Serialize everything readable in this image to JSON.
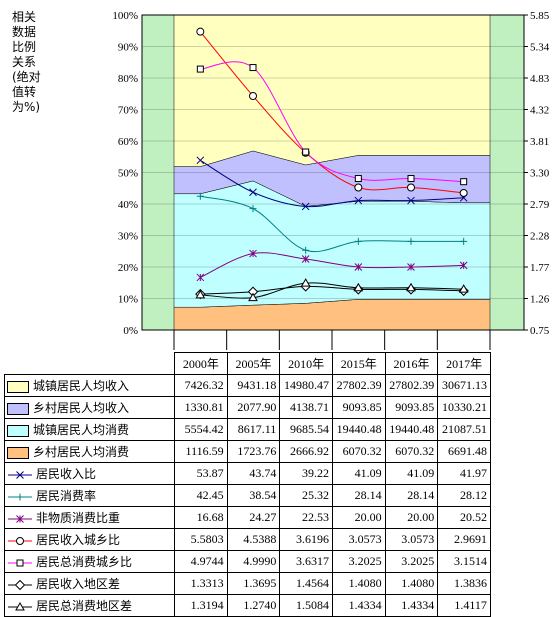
{
  "y_title": "相关数据比例关系(绝对值转为%)",
  "chart_data": {
    "type": "area",
    "categories": [
      "2000年",
      "2005年",
      "2010年",
      "2015年",
      "2016年",
      "2017年"
    ],
    "left_axis": {
      "ylim": [
        0,
        100
      ],
      "ticks": [
        "0%",
        "10%",
        "20%",
        "30%",
        "40%",
        "50%",
        "60%",
        "70%",
        "80%",
        "90%",
        "100%"
      ]
    },
    "right_axis": {
      "ylim": [
        0.75,
        5.85
      ],
      "ticks": [
        "0.75",
        "1.26",
        "1.77",
        "2.28",
        "2.79",
        "3.30",
        "3.81",
        "4.32",
        "4.83",
        "5.34",
        "5.85"
      ]
    },
    "area_series": [
      {
        "name": "城镇居民人均收入",
        "color": "#ffffc0",
        "values": [
          7426.32,
          9431.18,
          14980.47,
          27802.39,
          27802.39,
          30671.13
        ],
        "labels": [
          "7426.32",
          "9431.18",
          "14980.47",
          "27802.39",
          "27802.39",
          "30671.13"
        ]
      },
      {
        "name": "乡村居民人均收入",
        "color": "#c0c0ff",
        "values": [
          1330.81,
          2077.9,
          4138.71,
          9093.85,
          9093.85,
          10330.21
        ],
        "labels": [
          "1330.81",
          "2077.90",
          "4138.71",
          "9093.85",
          "9093.85",
          "10330.21"
        ]
      },
      {
        "name": "城镇居民人均消费",
        "color": "#c0ffff",
        "values": [
          5554.42,
          8617.11,
          9685.54,
          19440.48,
          19440.48,
          21087.51
        ],
        "labels": [
          "5554.42",
          "8617.11",
          "9685.54",
          "19440.48",
          "19440.48",
          "21087.51"
        ]
      },
      {
        "name": "乡村居民人均消费",
        "color": "#ffc080",
        "values": [
          1116.59,
          1723.76,
          2666.92,
          6070.32,
          6070.32,
          6691.48
        ],
        "labels": [
          "1116.59",
          "1723.76",
          "2666.92",
          "6070.32",
          "6070.32",
          "6691.48"
        ]
      }
    ],
    "line_series": [
      {
        "name": "居民收入比",
        "axis": "left",
        "color": "#000080",
        "marker": "x",
        "values": [
          53.87,
          43.74,
          39.22,
          41.09,
          41.09,
          41.97
        ],
        "labels": [
          "53.87",
          "43.74",
          "39.22",
          "41.09",
          "41.09",
          "41.97"
        ]
      },
      {
        "name": "居民消费率",
        "axis": "left",
        "color": "#008080",
        "marker": "plus",
        "values": [
          42.45,
          38.54,
          25.32,
          28.14,
          28.14,
          28.12
        ],
        "labels": [
          "42.45",
          "38.54",
          "25.32",
          "28.14",
          "28.14",
          "28.12"
        ]
      },
      {
        "name": "非物质消费比重",
        "axis": "left",
        "color": "#800080",
        "marker": "star",
        "values": [
          16.68,
          24.27,
          22.53,
          20.0,
          20.0,
          20.52
        ],
        "labels": [
          "16.68",
          "24.27",
          "22.53",
          "20.00",
          "20.00",
          "20.52"
        ]
      },
      {
        "name": "居民收入城乡比",
        "axis": "right",
        "color": "#ff0000",
        "marker": "circle",
        "values": [
          5.5803,
          4.5388,
          3.6196,
          3.0573,
          3.0573,
          2.9691
        ],
        "labels": [
          "5.5803",
          "4.5388",
          "3.6196",
          "3.0573",
          "3.0573",
          "2.9691"
        ]
      },
      {
        "name": "居民总消费城乡比",
        "axis": "right",
        "color": "#ff00ff",
        "marker": "square",
        "values": [
          4.9744,
          4.999,
          3.6317,
          3.2025,
          3.2025,
          3.1514
        ],
        "labels": [
          "4.9744",
          "4.9990",
          "3.6317",
          "3.2025",
          "3.2025",
          "3.1514"
        ]
      },
      {
        "name": "居民收入地区差",
        "axis": "right",
        "color": "#000000",
        "marker": "diamond",
        "values": [
          1.3313,
          1.3695,
          1.4564,
          1.408,
          1.408,
          1.3836
        ],
        "labels": [
          "1.3313",
          "1.3695",
          "1.4564",
          "1.4080",
          "1.4080",
          "1.3836"
        ]
      },
      {
        "name": "居民总消费地区差",
        "axis": "right",
        "color": "#000000",
        "marker": "triangle",
        "values": [
          1.3194,
          1.274,
          1.5084,
          1.4334,
          1.4334,
          1.4117
        ],
        "labels": [
          "1.3194",
          "1.2740",
          "1.5084",
          "1.4334",
          "1.4334",
          "1.4117"
        ]
      }
    ],
    "background_color": "#c0f0c0",
    "grid": true,
    "legend": "data-table-below"
  }
}
